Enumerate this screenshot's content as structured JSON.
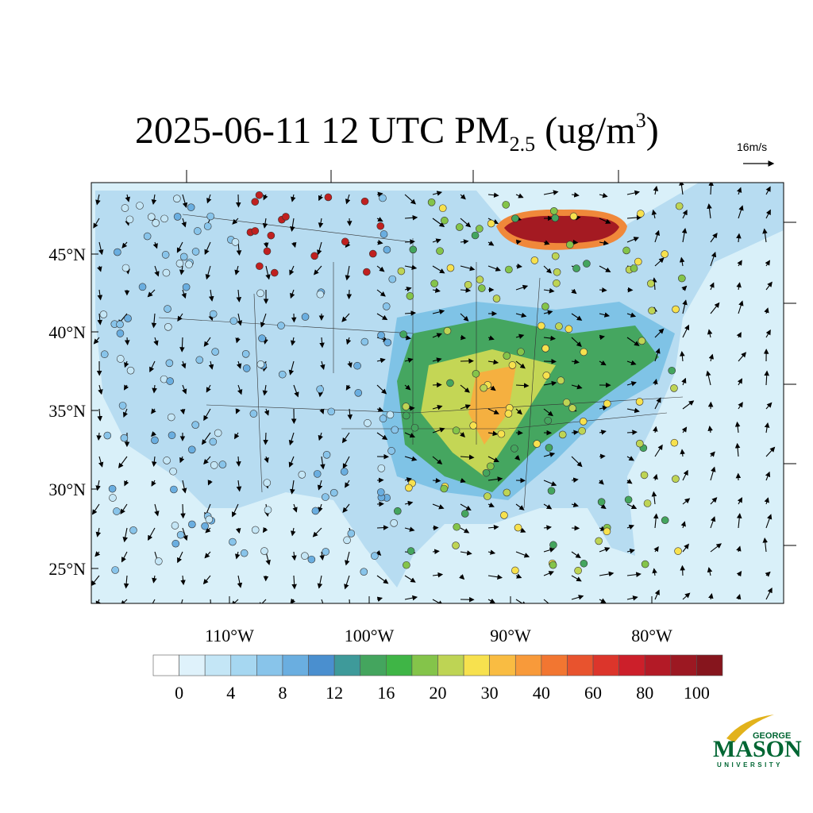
{
  "title": {
    "main": "2025-06-11 12 UTC PM",
    "subscript": "2.5",
    "units_open": " (ug/m",
    "superscript": "3",
    "units_close": ")"
  },
  "reference_vector": "16m/s",
  "latitude_labels": [
    "45°N",
    "40°N",
    "35°N",
    "30°N",
    "25°N"
  ],
  "longitude_labels": [
    "110°W",
    "100°W",
    "90°W",
    "80°W"
  ],
  "colorbar": {
    "colors": [
      "#ffffff",
      "#dff2fb",
      "#c4e6f6",
      "#a6d7f1",
      "#88c4ea",
      "#6aaee0",
      "#4a8fcf",
      "#3e9a9a",
      "#44a55e",
      "#3fb546",
      "#84c44a",
      "#bed454",
      "#f7e14e",
      "#f9bc42",
      "#f89a3a",
      "#f27631",
      "#e8532e",
      "#dc352b",
      "#cc1f2a",
      "#b31a26",
      "#9c1822",
      "#86151d"
    ],
    "labels": [
      0,
      4,
      8,
      12,
      16,
      20,
      30,
      40,
      60,
      80,
      100
    ]
  },
  "logo": {
    "top": "GEORGE",
    "main": "MASON",
    "bottom": "UNIVERSITY"
  }
}
